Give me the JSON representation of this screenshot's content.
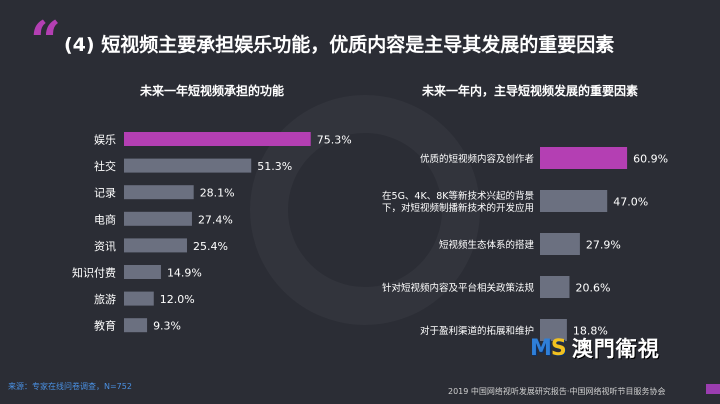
{
  "slide": {
    "quote_mark": "“",
    "title": "(4) 短视频主要承担娱乐功能，优质内容是主导其发展的重要因素",
    "source": "来源：专家在线问卷调查，N=752",
    "footer": "2019 中国网络视听发展研究报告·中国网络视听节目服务协会",
    "logo_ms": "MS",
    "logo_text": "澳門衛視"
  },
  "colors": {
    "background": "#2b2d35",
    "highlight": "#b43fb3",
    "bar": "#6b7080",
    "text": "#ffffff"
  },
  "chart_data": [
    {
      "type": "bar",
      "orientation": "horizontal",
      "title": "未来一年短视频承担的功能",
      "categories": [
        "娱乐",
        "社交",
        "记录",
        "电商",
        "资讯",
        "知识付费",
        "旅游",
        "教育"
      ],
      "values": [
        75.3,
        51.3,
        28.1,
        27.4,
        25.4,
        14.9,
        12.0,
        9.3
      ],
      "labels": [
        "75.3%",
        "51.3%",
        "28.1%",
        "27.4%",
        "25.4%",
        "14.9%",
        "12.0%",
        "9.3%"
      ],
      "highlight_index": 0,
      "xlim": [
        0,
        80
      ]
    },
    {
      "type": "bar",
      "orientation": "horizontal",
      "title": "未来一年内，主导短视频发展的重要因素",
      "categories": [
        [
          "优质的短视频内容及创作者"
        ],
        [
          "在5G、4K、8K等新技术兴起的背景",
          "下，对短视频制播新技术的开发应用"
        ],
        [
          "短视频生态体系的搭建"
        ],
        [
          "针对短视频内容及平台相关政策法规"
        ],
        [
          "对于盈利渠道的拓展和维护"
        ]
      ],
      "values": [
        60.9,
        47.0,
        27.9,
        20.6,
        18.8
      ],
      "labels": [
        "60.9%",
        "47.0%",
        "27.9%",
        "20.6%",
        "18.8%"
      ],
      "highlight_index": 0,
      "xlim": [
        0,
        65
      ]
    }
  ]
}
